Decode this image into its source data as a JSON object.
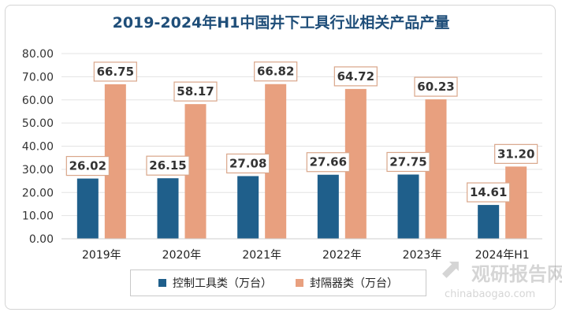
{
  "chart_data": {
    "type": "bar",
    "title": "2019-2024年H1中国井下工具行业相关产品产量",
    "categories": [
      "2019年",
      "2020年",
      "2021年",
      "2022年",
      "2023年",
      "2024年H1"
    ],
    "series": [
      {
        "name": "控制工具类（万台）",
        "values": [
          26.02,
          26.15,
          27.08,
          27.66,
          27.75,
          14.61
        ],
        "color": "#1f5f8b"
      },
      {
        "name": "封隔器类（万台）",
        "values": [
          66.75,
          58.17,
          66.82,
          64.72,
          60.23,
          31.2
        ],
        "color": "#e8a07f"
      }
    ],
    "ylim": [
      0,
      80
    ],
    "yticks": [
      "0.00",
      "10.00",
      "20.00",
      "30.00",
      "40.00",
      "50.00",
      "60.00",
      "70.00",
      "80.00"
    ],
    "grid": true,
    "legend_position": "bottom",
    "label_border_color": "#d9a68a"
  },
  "watermark": {
    "logo_icon": "growth-chart-logo-icon",
    "text_cn": "观研报告网",
    "text_en": "chinabaogao.com"
  }
}
